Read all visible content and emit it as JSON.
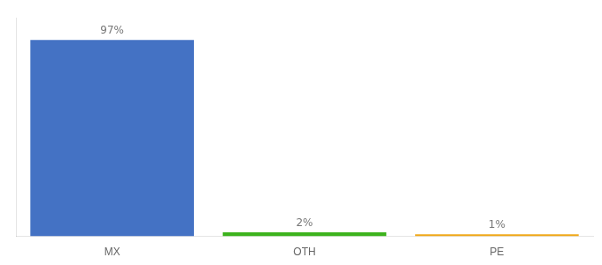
{
  "chart_data": {
    "type": "bar",
    "categories": [
      "MX",
      "OTH",
      "PE"
    ],
    "values": [
      97,
      2,
      1
    ],
    "value_labels": [
      "97%",
      "2%",
      "1%"
    ],
    "colors": [
      "#4472c4",
      "#3db31d",
      "#f0a818"
    ],
    "ylim": [
      0,
      108
    ],
    "grid": false,
    "tick_labels": "x",
    "data_labels": true
  }
}
